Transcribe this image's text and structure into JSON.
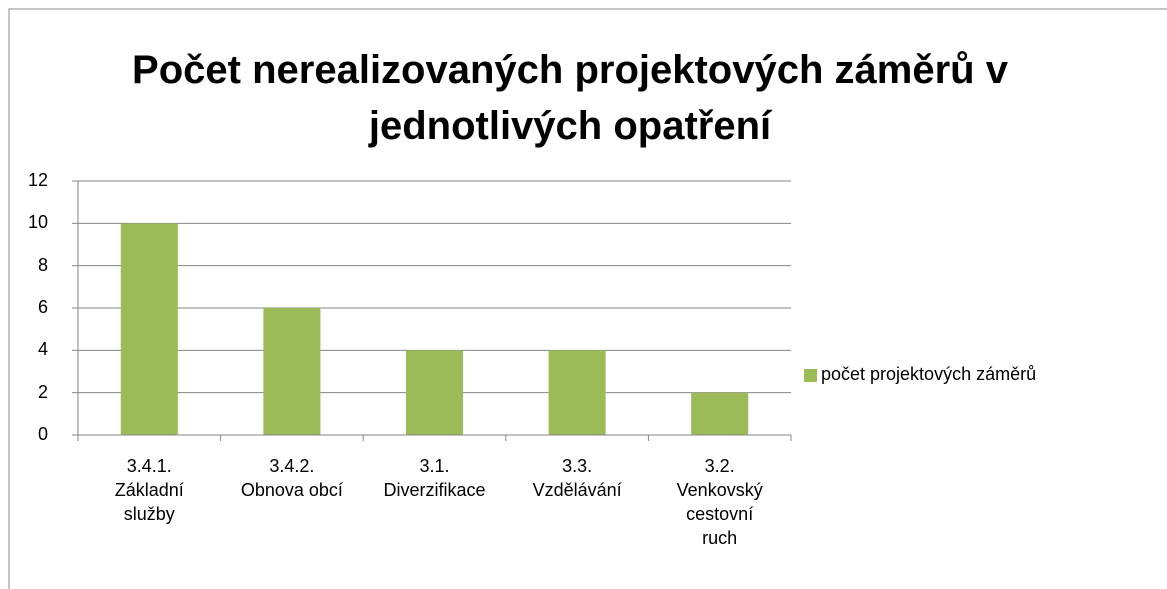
{
  "chart_data": {
    "type": "bar",
    "title": "Počet nerealizovaných projektových záměrů v\njednotlivých opatření",
    "categories": [
      "3.4.1.\nZákladní\nslužby",
      "3.4.2.\nObnova obcí",
      "3.1.\nDiverzifikace",
      "3.3.\nVzdělávání",
      "3.2.\nVenkovský\ncestovní\nruch"
    ],
    "series": [
      {
        "name": "počet projektových záměrů",
        "color": "#9bbb59",
        "values": [
          10,
          6,
          4,
          4,
          2
        ]
      }
    ],
    "ylim": [
      0,
      12
    ],
    "yticks": [
      0,
      2,
      4,
      6,
      8,
      10,
      12
    ],
    "grid": true,
    "legend": "right"
  }
}
